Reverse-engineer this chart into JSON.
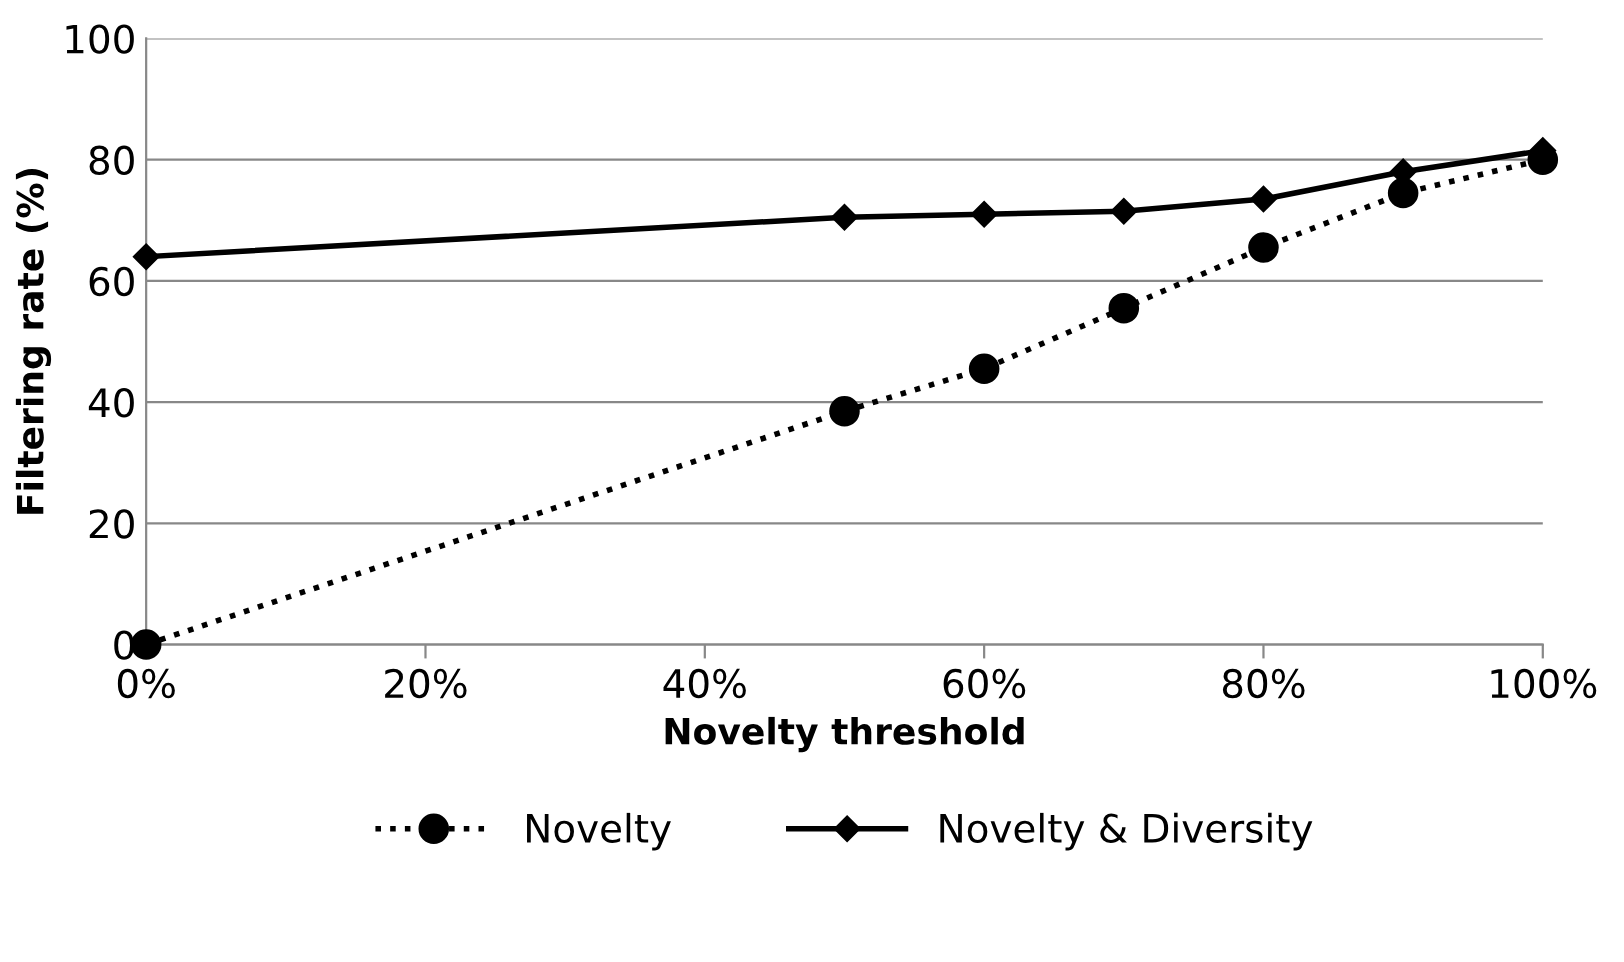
{
  "chart_data": {
    "type": "line",
    "xlabel": "Novelty threshold",
    "ylabel": "Filtering rate (%)",
    "x": [
      0,
      50,
      60,
      70,
      80,
      90,
      100
    ],
    "series": [
      {
        "name": "Novelty",
        "color": "#000000",
        "values": [
          0,
          38.5,
          45.5,
          55.5,
          65.5,
          74.5,
          80
        ],
        "marker": "circle",
        "line_style": "dotted"
      },
      {
        "name": "Novelty & Diversity",
        "color": "#000000",
        "values": [
          64,
          70.5,
          71,
          71.5,
          73.5,
          78,
          81.5
        ],
        "marker": "diamond",
        "line_style": "solid"
      }
    ],
    "xlim": [
      0,
      100
    ],
    "xticks": [
      {
        "value": 0,
        "label": "0%"
      },
      {
        "value": 20,
        "label": "20%"
      },
      {
        "value": 40,
        "label": "40%"
      },
      {
        "value": 60,
        "label": "60%"
      },
      {
        "value": 80,
        "label": "80%"
      },
      {
        "value": 100,
        "label": "100%"
      }
    ],
    "ylim": [
      0,
      100
    ],
    "yticks": [
      0,
      20,
      40,
      60,
      80,
      100
    ],
    "grid": "y",
    "legend": "bottom"
  }
}
